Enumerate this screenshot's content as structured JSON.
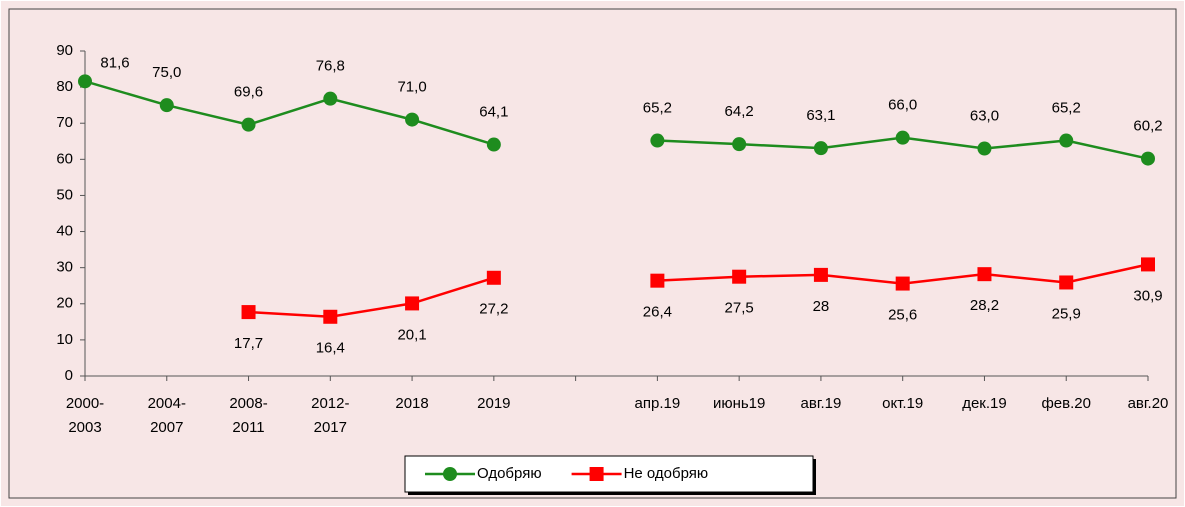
{
  "chart_data": {
    "type": "line",
    "categories": [
      "2000-2003",
      "2004-2007",
      "2008-2011",
      "2012-2017",
      "2018",
      "2019",
      null,
      "апр.19",
      "июнь19",
      "авг.19",
      "окт.19",
      "дек.19",
      "фев.20",
      "авг.20"
    ],
    "series": [
      {
        "name": "Одобряю",
        "color": "#1e8c1e",
        "marker": "circle",
        "values": [
          81.6,
          75.0,
          69.6,
          76.8,
          71.0,
          64.1,
          null,
          65.2,
          64.2,
          63.1,
          66.0,
          63.0,
          65.2,
          60.2
        ],
        "value_labels": [
          "81,6",
          "75,0",
          "69,6",
          "76,8",
          "71,0",
          "64,1",
          null,
          "65,2",
          "64,2",
          "63,1",
          "66,0",
          "63,0",
          "65,2",
          "60,2"
        ]
      },
      {
        "name": "Не одобряю",
        "color": "#ff0000",
        "marker": "square",
        "values": [
          null,
          null,
          17.7,
          16.4,
          20.1,
          27.2,
          null,
          26.4,
          27.5,
          28,
          25.6,
          28.2,
          25.9,
          30.9
        ],
        "value_labels": [
          null,
          null,
          "17,7",
          "16,4",
          "20,1",
          "27,2",
          null,
          "26,4",
          "27,5",
          "28",
          "25,6",
          "28,2",
          "25,9",
          "30,9"
        ]
      }
    ],
    "ylim": [
      0,
      90
    ],
    "yticks": [
      0,
      10,
      20,
      30,
      40,
      50,
      60,
      70,
      80,
      90
    ],
    "legend": "bottom"
  }
}
